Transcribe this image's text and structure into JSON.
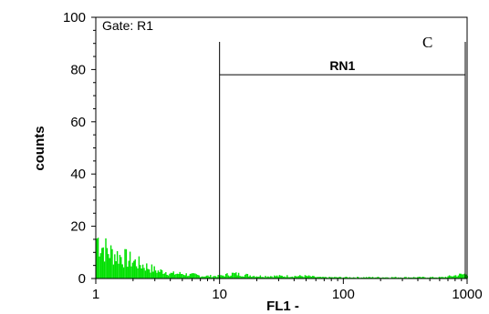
{
  "chart_data": {
    "type": "histogram",
    "gate_text": "Gate: R1",
    "panel_letter": "C",
    "xlabel": "FL1  -",
    "ylabel": "counts",
    "x_scale": "log",
    "xlim": [
      1,
      1000
    ],
    "ylim": [
      0,
      100
    ],
    "x_ticks": [
      {
        "value": 1,
        "label": "1"
      },
      {
        "value": 10,
        "label": "10"
      },
      {
        "value": 100,
        "label": "100"
      },
      {
        "value": 1000,
        "label": "1000"
      }
    ],
    "y_ticks": [
      {
        "value": 0,
        "label": "0"
      },
      {
        "value": 20,
        "label": "20"
      },
      {
        "value": 40,
        "label": "40"
      },
      {
        "value": 60,
        "label": "60"
      },
      {
        "value": 80,
        "label": "80"
      },
      {
        "value": 100,
        "label": "100"
      }
    ],
    "series_color": "#00e000",
    "marker": {
      "label": "RN1",
      "start": 10,
      "end": 1000,
      "level": 78
    },
    "bin_centers_log": [
      0.0,
      0.05,
      0.1,
      0.15,
      0.2,
      0.25,
      0.3,
      0.35,
      0.4,
      0.45,
      0.5,
      0.55,
      0.6,
      0.65,
      0.7,
      0.75,
      0.8,
      0.85,
      0.9,
      0.95,
      1.0,
      1.05,
      1.1,
      1.2,
      1.3,
      1.4,
      1.5,
      1.6,
      1.7,
      1.8,
      1.9,
      2.0,
      2.2,
      2.4,
      2.6,
      2.8,
      3.0
    ],
    "counts": [
      17,
      13,
      11,
      10,
      9,
      8,
      7,
      6,
      5,
      4,
      3,
      3,
      2,
      2,
      2,
      1.5,
      1.5,
      1,
      1,
      1,
      1,
      1.5,
      2,
      1.5,
      1,
      1,
      1,
      1,
      1,
      0.5,
      0.5,
      0.5,
      0.5,
      0.5,
      0.5,
      0.5,
      2
    ]
  }
}
